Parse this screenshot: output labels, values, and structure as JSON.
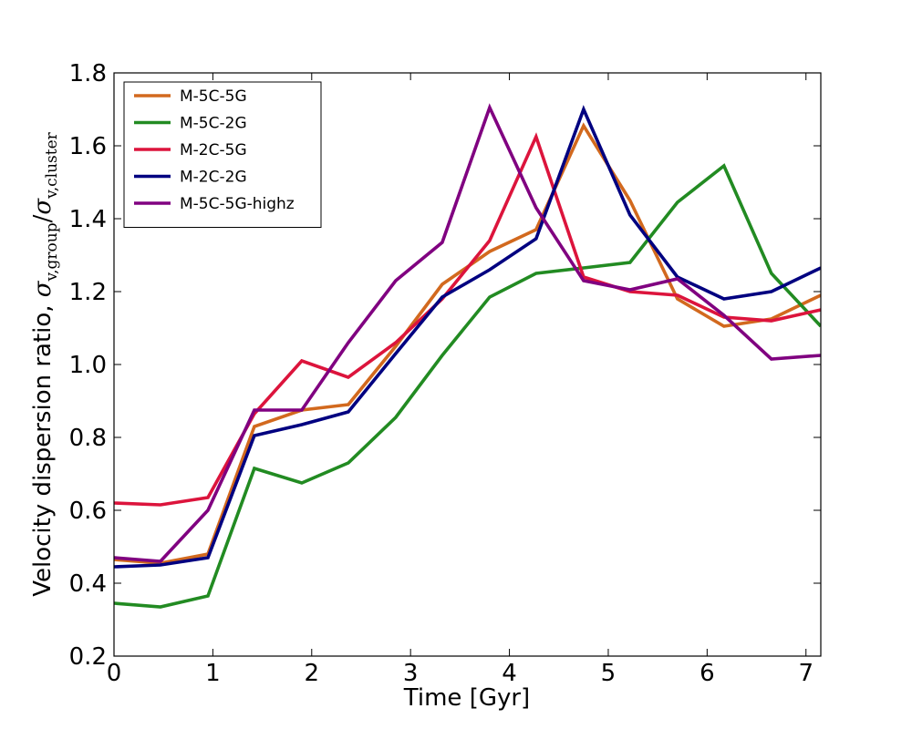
{
  "chart_data": {
    "type": "line",
    "title": "",
    "xlabel": "Time [Gyr]",
    "ylabel_text": "Velocity dispersion ratio, ",
    "ylabel_math": {
      "num_symbol": "σ",
      "num_sub": "v,group",
      "slash": "/",
      "den_symbol": "σ",
      "den_sub": "v,cluster"
    },
    "xlim": [
      0,
      7.15
    ],
    "ylim": [
      0.2,
      1.8
    ],
    "xticks": [
      0,
      1,
      2,
      3,
      4,
      5,
      6,
      7
    ],
    "yticks": [
      0.2,
      0.4,
      0.6,
      0.8,
      1.0,
      1.2,
      1.4,
      1.6,
      1.8
    ],
    "grid": false,
    "legend_position": "top-left",
    "x": [
      0,
      0.47,
      0.95,
      1.42,
      1.9,
      2.37,
      2.85,
      3.32,
      3.8,
      4.27,
      4.75,
      5.22,
      5.7,
      6.17,
      6.65,
      7.15
    ],
    "series": [
      {
        "name": "M-5C-5G",
        "color": "#d2691e",
        "values": [
          0.465,
          0.455,
          0.48,
          0.83,
          0.875,
          0.89,
          1.05,
          1.22,
          1.31,
          1.37,
          1.655,
          1.45,
          1.18,
          1.105,
          1.125,
          1.19
        ]
      },
      {
        "name": "M-5C-2G",
        "color": "#228b22",
        "values": [
          0.345,
          0.335,
          0.365,
          0.715,
          0.675,
          0.73,
          0.855,
          1.025,
          1.185,
          1.25,
          1.265,
          1.28,
          1.445,
          1.545,
          1.25,
          1.105
        ]
      },
      {
        "name": "M-2C-5G",
        "color": "#dc143c",
        "values": [
          0.62,
          0.615,
          0.635,
          0.865,
          1.01,
          0.965,
          1.06,
          1.18,
          1.34,
          1.625,
          1.24,
          1.2,
          1.19,
          1.13,
          1.12,
          1.15
        ]
      },
      {
        "name": "M-2C-2G",
        "color": "#000080",
        "values": [
          0.445,
          0.45,
          0.47,
          0.805,
          0.835,
          0.87,
          1.03,
          1.185,
          1.26,
          1.345,
          1.7,
          1.41,
          1.24,
          1.18,
          1.2,
          1.265
        ]
      },
      {
        "name": "M-5C-5G-highz",
        "color": "#800080",
        "values": [
          0.47,
          0.46,
          0.6,
          0.875,
          0.875,
          1.06,
          1.23,
          1.335,
          1.705,
          1.43,
          1.23,
          1.205,
          1.235,
          1.135,
          1.015,
          1.025
        ]
      }
    ]
  }
}
